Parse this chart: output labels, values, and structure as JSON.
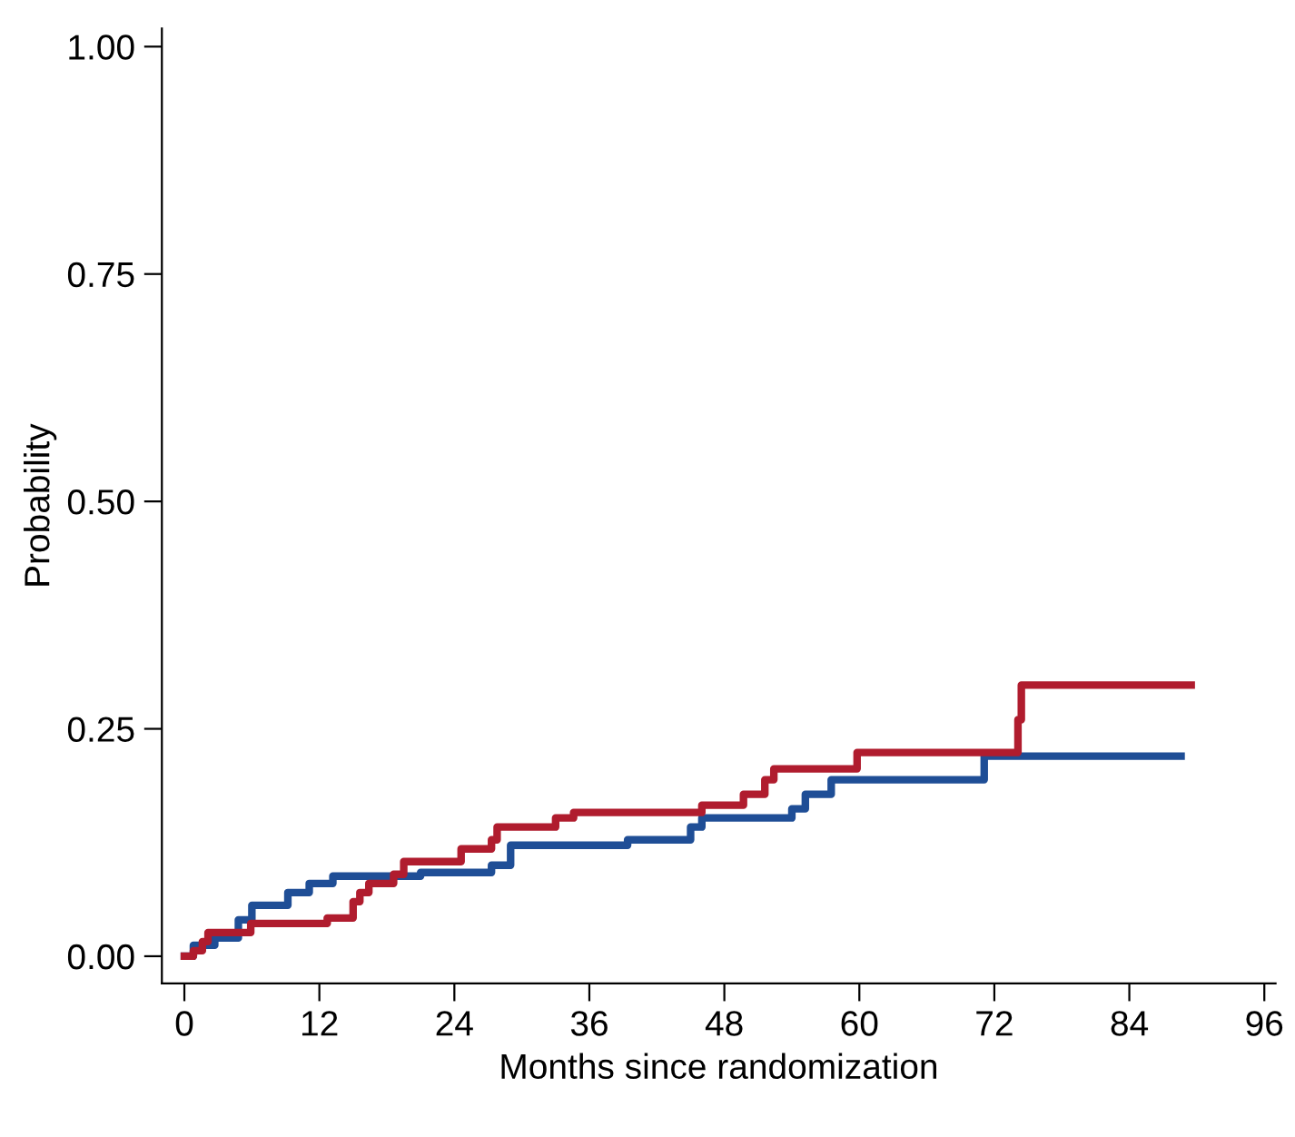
{
  "chart_data": {
    "type": "step",
    "xlabel": "Months since randomization",
    "ylabel": "Probability",
    "xlim": [
      -2,
      97
    ],
    "xticks": [
      0,
      12,
      24,
      36,
      48,
      60,
      72,
      84,
      96
    ],
    "ylim": [
      -0.03,
      1.02
    ],
    "yticks": [
      {
        "value": 0,
        "label": "0.00"
      },
      {
        "value": 0.25,
        "label": "0.25"
      },
      {
        "value": 0.5,
        "label": "0.50"
      },
      {
        "value": 0.75,
        "label": "0.75"
      },
      {
        "value": 1,
        "label": "1.00"
      }
    ],
    "grid": false,
    "legend": false,
    "marker": "none",
    "line_style": "solid",
    "series": [
      {
        "color": "#1f4e96",
        "x": [
          0,
          0.8,
          2.7,
          4.8,
          6,
          9.2,
          11.1,
          13.2,
          21,
          27.3,
          29,
          39.4,
          45,
          46,
          54,
          55.2,
          57.5,
          71.1,
          88.6
        ],
        "values": [
          0,
          0.012,
          0.02,
          0.04,
          0.056,
          0.07,
          0.08,
          0.088,
          0.092,
          0.1,
          0.122,
          0.128,
          0.142,
          0.152,
          0.162,
          0.178,
          0.194,
          0.22,
          0.22
        ]
      },
      {
        "color": "#b01c2e",
        "x": [
          0,
          0.8,
          1.6,
          2.1,
          5.9,
          12.7,
          15,
          15.6,
          16.4,
          18.6,
          19.5,
          24.6,
          27.3,
          27.8,
          33,
          34.6,
          46,
          49.7,
          51.6,
          52.4,
          59.8,
          74.1,
          74.4,
          89.5
        ],
        "values": [
          0,
          0.006,
          0.016,
          0.026,
          0.036,
          0.042,
          0.06,
          0.07,
          0.08,
          0.09,
          0.104,
          0.118,
          0.128,
          0.142,
          0.152,
          0.158,
          0.166,
          0.178,
          0.194,
          0.206,
          0.224,
          0.26,
          0.298,
          0.298
        ]
      }
    ]
  }
}
